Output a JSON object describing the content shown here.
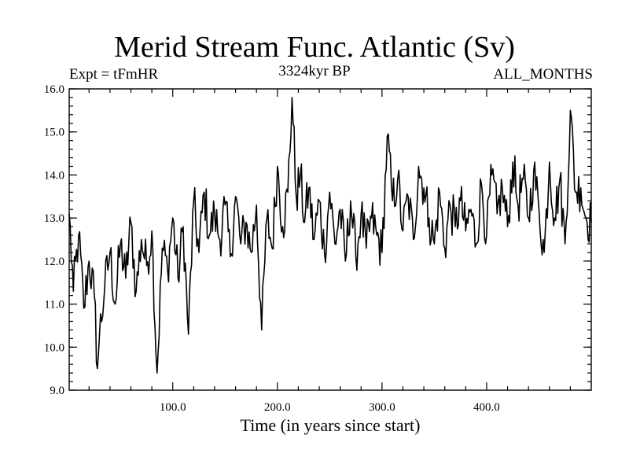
{
  "chart_data": {
    "type": "line",
    "title": "Merid Stream Func. Atlantic (Sv)",
    "subtitle_left": "Expt = tFmHR",
    "subtitle_center": "3324kyr BP",
    "subtitle_right": "ALL_MONTHS",
    "xlabel": "Time (in years since start)",
    "ylabel": "",
    "xlim": [
      1,
      500
    ],
    "ylim": [
      9.0,
      16.0
    ],
    "xticks": [
      100.0,
      200.0,
      300.0,
      400.0
    ],
    "xtick_labels": [
      "100.0",
      "200.0",
      "300.0",
      "400.0"
    ],
    "yticks": [
      9.0,
      10.0,
      11.0,
      12.0,
      13.0,
      14.0,
      15.0,
      16.0
    ],
    "ytick_labels": [
      "9.0",
      "10.0",
      "11.0",
      "12.0",
      "13.0",
      "14.0",
      "15.0",
      "16.0"
    ],
    "grid": false,
    "series": [
      {
        "name": "Merid Stream Func. Atlantic",
        "x": [
          1,
          5,
          10,
          15,
          20,
          25,
          28,
          30,
          35,
          40,
          45,
          50,
          55,
          60,
          65,
          70,
          75,
          80,
          85,
          90,
          95,
          100,
          105,
          110,
          115,
          120,
          125,
          130,
          135,
          140,
          145,
          150,
          155,
          160,
          165,
          170,
          175,
          180,
          185,
          190,
          195,
          200,
          205,
          210,
          214,
          218,
          222,
          226,
          230,
          235,
          240,
          245,
          250,
          255,
          260,
          265,
          270,
          275,
          280,
          285,
          290,
          295,
          300,
          305,
          310,
          315,
          320,
          325,
          330,
          335,
          340,
          345,
          350,
          355,
          360,
          365,
          370,
          375,
          380,
          385,
          390,
          395,
          400,
          405,
          410,
          415,
          420,
          425,
          430,
          435,
          440,
          445,
          450,
          455,
          460,
          465,
          470,
          475,
          480,
          485,
          490,
          495,
          500
        ],
        "values": [
          13.1,
          11.3,
          12.6,
          10.9,
          12.0,
          11.2,
          9.5,
          10.3,
          11.4,
          12.2,
          11.0,
          12.4,
          11.6,
          12.9,
          11.3,
          12.5,
          11.9,
          12.7,
          9.4,
          12.3,
          11.8,
          13.0,
          11.6,
          12.8,
          10.3,
          13.4,
          12.2,
          13.6,
          12.6,
          13.1,
          12.5,
          13.3,
          12.1,
          13.5,
          12.4,
          12.9,
          12.2,
          13.3,
          10.4,
          13.0,
          12.3,
          14.2,
          12.8,
          13.6,
          15.8,
          13.5,
          14.0,
          12.9,
          13.7,
          12.5,
          13.4,
          12.2,
          13.6,
          12.4,
          13.2,
          12.0,
          13.4,
          12.1,
          13.1,
          12.3,
          13.0,
          12.6,
          12.2,
          14.9,
          13.4,
          13.9,
          12.7,
          13.5,
          12.5,
          14.2,
          13.7,
          13.0,
          12.4,
          13.6,
          12.3,
          13.3,
          12.8,
          13.4,
          12.7,
          13.2,
          12.4,
          13.8,
          12.6,
          14.0,
          13.1,
          13.7,
          12.8,
          14.3,
          13.3,
          13.9,
          13.0,
          14.1,
          13.2,
          12.2,
          14.3,
          13.0,
          13.9,
          12.4,
          15.5,
          13.6,
          13.7,
          13.0,
          12.9
        ]
      }
    ]
  }
}
